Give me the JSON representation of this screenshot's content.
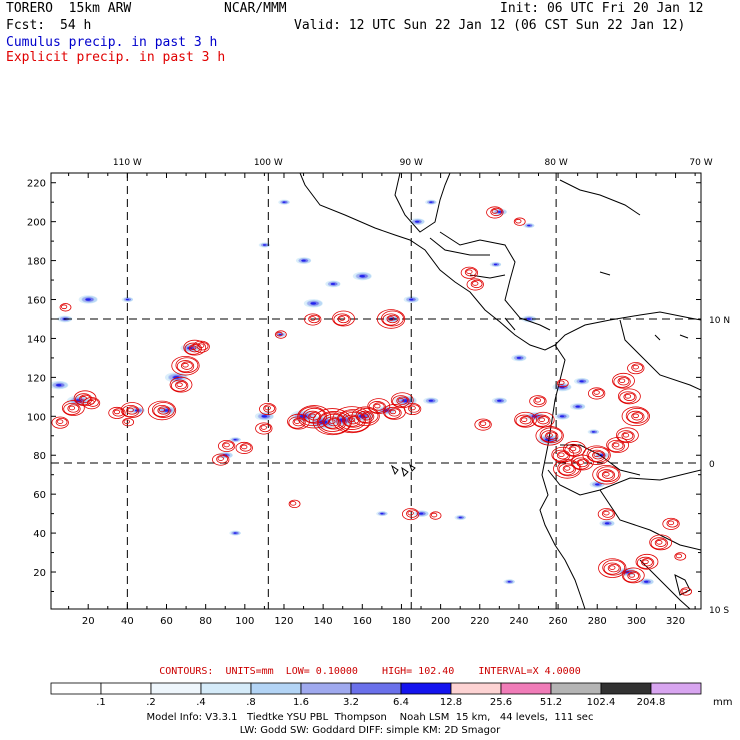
{
  "header": {
    "model": "TORERO  15km ARW",
    "org": "NCAR/MMM",
    "init": "Init: 06 UTC Fri 20 Jan 12",
    "fcst_label": "Fcst:",
    "fcst_value": "54 h",
    "valid": "Valid: 12 UTC Sun 22 Jan 12 (06 CST Sun 22 Jan 12)",
    "field1": "Cumulus precip. in past 3 h",
    "field2": "Explicit precip. in past 3 h",
    "field1_color": "#0000cc",
    "field2_color": "#e00000"
  },
  "map": {
    "lon_labels": [
      "110 W",
      "100 W",
      "90 W",
      "80 W",
      "70 W"
    ],
    "lat_labels": [
      "10 N",
      "0",
      "10 S"
    ],
    "y_ticks": [
      "20",
      "40",
      "60",
      "80",
      "100",
      "120",
      "140",
      "160",
      "180",
      "200",
      "220"
    ],
    "x_ticks": [
      "20",
      "40",
      "60",
      "80",
      "100",
      "120",
      "140",
      "160",
      "180",
      "200",
      "220",
      "240",
      "260",
      "280",
      "300",
      "320"
    ],
    "grid_x_range": [
      1,
      333
    ],
    "grid_y_range": [
      1,
      225
    ],
    "meridians_grid_x": [
      40,
      112,
      185,
      259
    ],
    "parallels_grid_y": [
      76,
      150
    ],
    "cumulus_cells": [
      [
        5,
        116,
        5
      ],
      [
        15,
        108,
        6
      ],
      [
        8,
        150,
        4
      ],
      [
        20,
        160,
        5
      ],
      [
        45,
        103,
        4
      ],
      [
        60,
        103,
        5
      ],
      [
        65,
        120,
        6
      ],
      [
        72,
        135,
        5
      ],
      [
        90,
        80,
        4
      ],
      [
        95,
        88,
        3
      ],
      [
        110,
        100,
        5
      ],
      [
        118,
        142,
        3
      ],
      [
        130,
        100,
        7
      ],
      [
        140,
        97,
        8
      ],
      [
        150,
        98,
        7
      ],
      [
        160,
        100,
        6
      ],
      [
        172,
        103,
        5
      ],
      [
        182,
        108,
        6
      ],
      [
        175,
        150,
        4
      ],
      [
        185,
        160,
        4
      ],
      [
        160,
        172,
        5
      ],
      [
        145,
        168,
        4
      ],
      [
        135,
        158,
        5
      ],
      [
        130,
        180,
        4
      ],
      [
        110,
        188,
        3
      ],
      [
        195,
        108,
        4
      ],
      [
        230,
        108,
        4
      ],
      [
        248,
        100,
        5
      ],
      [
        255,
        88,
        6
      ],
      [
        262,
        100,
        4
      ],
      [
        262,
        115,
        5
      ],
      [
        272,
        118,
        4
      ],
      [
        270,
        105,
        4
      ],
      [
        240,
        130,
        4
      ],
      [
        245,
        150,
        4
      ],
      [
        278,
        92,
        3
      ],
      [
        282,
        80,
        4
      ],
      [
        280,
        65,
        4
      ],
      [
        295,
        20,
        5
      ],
      [
        305,
        15,
        4
      ],
      [
        285,
        45,
        4
      ],
      [
        190,
        50,
        4
      ],
      [
        170,
        50,
        3
      ],
      [
        210,
        48,
        3
      ],
      [
        230,
        205,
        4
      ],
      [
        245,
        198,
        3
      ],
      [
        228,
        178,
        3
      ],
      [
        120,
        210,
        3
      ],
      [
        195,
        210,
        3
      ],
      [
        235,
        15,
        3
      ],
      [
        40,
        160,
        3
      ],
      [
        95,
        40,
        3
      ],
      [
        188,
        200,
        4
      ]
    ],
    "explicit_cells": [
      [
        6,
        97,
        3
      ],
      [
        12,
        104,
        4
      ],
      [
        18,
        109,
        4
      ],
      [
        22,
        107,
        3
      ],
      [
        42,
        103,
        4
      ],
      [
        58,
        103,
        5
      ],
      [
        67,
        116,
        4
      ],
      [
        70,
        126,
        5
      ],
      [
        74,
        135,
        4
      ],
      [
        78,
        136,
        3
      ],
      [
        88,
        78,
        3
      ],
      [
        91,
        85,
        3
      ],
      [
        100,
        84,
        3
      ],
      [
        110,
        94,
        3
      ],
      [
        112,
        104,
        3
      ],
      [
        118,
        142,
        2
      ],
      [
        127,
        97,
        4
      ],
      [
        135,
        100,
        6
      ],
      [
        145,
        97,
        7
      ],
      [
        155,
        98,
        7
      ],
      [
        162,
        100,
        5
      ],
      [
        168,
        105,
        4
      ],
      [
        176,
        102,
        4
      ],
      [
        180,
        108,
        4
      ],
      [
        186,
        104,
        3
      ],
      [
        175,
        150,
        5
      ],
      [
        150,
        150,
        4
      ],
      [
        135,
        150,
        3
      ],
      [
        228,
        205,
        3
      ],
      [
        240,
        200,
        2
      ],
      [
        215,
        174,
        3
      ],
      [
        218,
        168,
        3
      ],
      [
        243,
        98,
        4
      ],
      [
        252,
        98,
        4
      ],
      [
        256,
        90,
        5
      ],
      [
        262,
        80,
        4
      ],
      [
        268,
        83,
        4
      ],
      [
        265,
        73,
        5
      ],
      [
        272,
        76,
        4
      ],
      [
        280,
        80,
        5
      ],
      [
        285,
        70,
        5
      ],
      [
        290,
        85,
        4
      ],
      [
        295,
        90,
        4
      ],
      [
        300,
        100,
        5
      ],
      [
        296,
        110,
        4
      ],
      [
        293,
        118,
        4
      ],
      [
        300,
        125,
        3
      ],
      [
        280,
        112,
        3
      ],
      [
        262,
        117,
        2
      ],
      [
        222,
        96,
        3
      ],
      [
        185,
        50,
        3
      ],
      [
        197,
        49,
        2
      ],
      [
        285,
        50,
        3
      ],
      [
        288,
        22,
        5
      ],
      [
        298,
        18,
        4
      ],
      [
        305,
        25,
        4
      ],
      [
        312,
        35,
        4
      ],
      [
        318,
        45,
        3
      ],
      [
        322,
        28,
        2
      ],
      [
        325,
        10,
        2
      ],
      [
        250,
        108,
        3
      ],
      [
        8,
        156,
        2
      ],
      [
        35,
        102,
        3
      ],
      [
        40,
        97,
        2
      ],
      [
        125,
        55,
        2
      ]
    ]
  },
  "contours_info": {
    "label": "CONTOURS:",
    "units": "UNITS=mm",
    "low": "LOW= 0.10000",
    "high": "HIGH= 102.40",
    "interval": "INTERVAL=X 4.0000"
  },
  "legend": {
    "labels": [
      ".1",
      ".2",
      ".4",
      ".8",
      "1.6",
      "3.2",
      "6.4",
      "12.8",
      "25.6",
      "51.2",
      "102.4",
      "204.8"
    ],
    "unit": "mm",
    "colors": [
      "#ffffff",
      "#ffffff",
      "#eef6fc",
      "#d5ebf9",
      "#b3d4f5",
      "#9fa9ee",
      "#6a70ea",
      "#1414ee",
      "#fdd3d3",
      "#f07cb8",
      "#b4b4b4",
      "#323232",
      "#d8a5f0"
    ]
  },
  "model_info": {
    "line1": "Model Info: V3.3.1   Tiedtke YSU PBL  Thompson    Noah LSM  15 km,   44 levels,  111 sec",
    "line2": "LW: Godd SW: Goddard DIFF: simple KM: 2D Smagor"
  }
}
